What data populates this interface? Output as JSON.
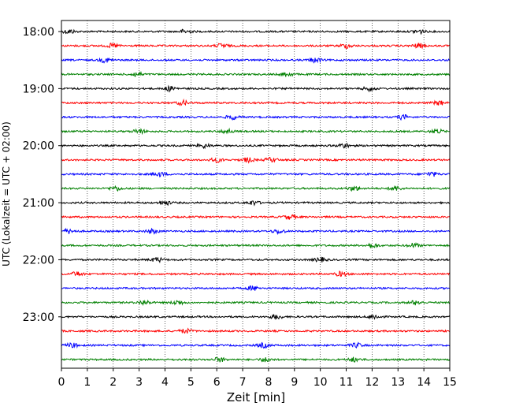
{
  "chart_data": {
    "type": "line",
    "title": "",
    "xlabel": "Zeit  [min]",
    "ylabel": "UTC (Lokalzeit = UTC + 02:00)",
    "xlim": [
      0,
      15
    ],
    "x_ticks": [
      0,
      1,
      2,
      3,
      4,
      5,
      6,
      7,
      8,
      9,
      10,
      11,
      12,
      13,
      14,
      15
    ],
    "y_ticks": [
      {
        "label": "18:00",
        "row": 0
      },
      {
        "label": "19:00",
        "row": 4
      },
      {
        "label": "20:00",
        "row": 8
      },
      {
        "label": "21:00",
        "row": 12
      },
      {
        "label": "22:00",
        "row": 16
      },
      {
        "label": "23:00",
        "row": 20
      }
    ],
    "grid": "vertical dotted at each minute",
    "trace_colors": [
      "#000000",
      "#ff0000",
      "#0000ff",
      "#008000"
    ],
    "rows": [
      {
        "start": "18:00",
        "color": "#000000",
        "bursts": [
          0.3,
          4.8,
          13.8
        ]
      },
      {
        "start": "18:15",
        "color": "#ff0000",
        "bursts": [
          2.0,
          6.2,
          11.0,
          13.8
        ]
      },
      {
        "start": "18:30",
        "color": "#0000ff",
        "bursts": [
          1.7,
          9.8
        ]
      },
      {
        "start": "18:45",
        "color": "#008000",
        "bursts": [
          2.9,
          8.7
        ]
      },
      {
        "start": "19:00",
        "color": "#000000",
        "bursts": [
          4.2,
          11.9
        ]
      },
      {
        "start": "19:15",
        "color": "#ff0000",
        "bursts": [
          4.7,
          14.6
        ]
      },
      {
        "start": "19:30",
        "color": "#0000ff",
        "bursts": [
          6.6,
          13.2
        ]
      },
      {
        "start": "19:45",
        "color": "#008000",
        "bursts": [
          3.0,
          6.4,
          14.5
        ]
      },
      {
        "start": "20:00",
        "color": "#000000",
        "bursts": [
          5.5,
          10.9
        ]
      },
      {
        "start": "20:15",
        "color": "#ff0000",
        "bursts": [
          6.0,
          7.2,
          8.1
        ]
      },
      {
        "start": "20:30",
        "color": "#0000ff",
        "bursts": [
          3.8,
          14.3
        ]
      },
      {
        "start": "20:45",
        "color": "#008000",
        "bursts": [
          2.1,
          11.3,
          12.9
        ]
      },
      {
        "start": "21:00",
        "color": "#000000",
        "bursts": [
          4.0,
          7.4
        ]
      },
      {
        "start": "21:15",
        "color": "#ff0000",
        "bursts": [
          8.8
        ]
      },
      {
        "start": "21:30",
        "color": "#0000ff",
        "bursts": [
          0.3,
          3.5,
          8.4
        ]
      },
      {
        "start": "21:45",
        "color": "#008000",
        "bursts": [
          12.0,
          13.6
        ]
      },
      {
        "start": "22:00",
        "color": "#000000",
        "bursts": [
          3.7,
          10.0
        ]
      },
      {
        "start": "22:15",
        "color": "#ff0000",
        "bursts": [
          0.6,
          10.8
        ]
      },
      {
        "start": "22:30",
        "color": "#0000ff",
        "bursts": [
          7.4
        ]
      },
      {
        "start": "22:45",
        "color": "#008000",
        "bursts": [
          3.2,
          4.5,
          13.7
        ]
      },
      {
        "start": "23:00",
        "color": "#000000",
        "bursts": [
          8.3,
          12.1
        ]
      },
      {
        "start": "23:15",
        "color": "#ff0000",
        "bursts": [
          4.8
        ]
      },
      {
        "start": "23:30",
        "color": "#0000ff",
        "bursts": [
          0.4,
          7.8,
          11.4
        ]
      },
      {
        "start": "23:45",
        "color": "#008000",
        "bursts": [
          6.1,
          7.9,
          11.3
        ]
      }
    ]
  }
}
